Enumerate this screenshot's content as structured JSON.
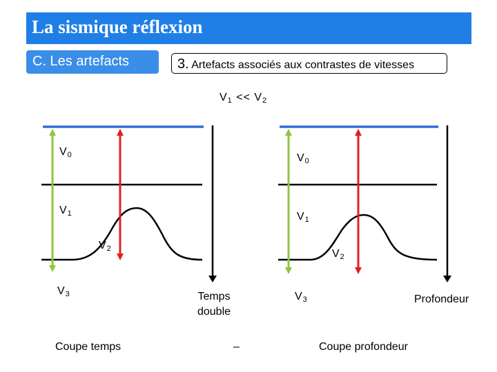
{
  "header": {
    "title": "La sismique réflexion",
    "section": "C. Les artefacts",
    "subsection_num": "3.",
    "subsection_text": " Artefacts associés aux contrastes de vitesses"
  },
  "condition": {
    "left": "V",
    "left_sub": "1",
    "op": " << ",
    "right": "V",
    "right_sub": "2"
  },
  "left_panel": {
    "v0": {
      "v": "V",
      "sub": "0"
    },
    "v1": {
      "v": "V",
      "sub": "1"
    },
    "v2": {
      "v": "V",
      "sub": "2"
    },
    "v3": {
      "v": "V",
      "sub": "3"
    },
    "axis_label_line1": "Temps",
    "axis_label_line2": "double",
    "caption": "Coupe temps"
  },
  "right_panel": {
    "v0": {
      "v": "V",
      "sub": "0"
    },
    "v1": {
      "v": "V",
      "sub": "1"
    },
    "v2": {
      "v": "V",
      "sub": "2"
    },
    "v3": {
      "v": "V",
      "sub": "3"
    },
    "axis_label": "Profondeur",
    "caption": "Coupe profondeur"
  },
  "separator": "–",
  "colors": {
    "banner": "#1f7fe6",
    "surface_line": "#2f6fd6",
    "green_arrow": "#8dc63f",
    "red_arrow": "#e02020"
  }
}
